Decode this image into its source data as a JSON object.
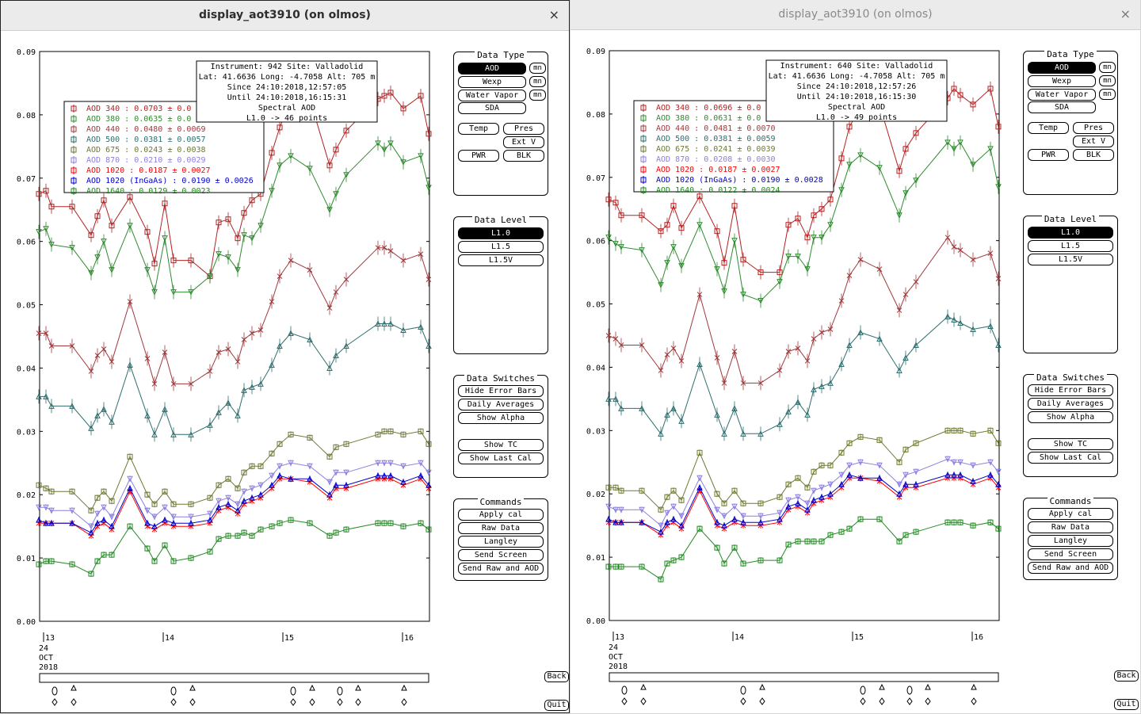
{
  "windows": [
    {
      "title": "display_aot3910 (on olmos)",
      "info": [
        "Instrument: 942 Site: Valladolid",
        "Lat: 41.6636 Long: -4.7058 Alt: 705 m",
        "Since 24:10:2018,12:57:05",
        "Until 24:10:2018,16:15:31",
        "Spectral AOD",
        "L1.0 -> 46 points"
      ],
      "legend": [
        "AOD 340   : 0.0703 ± 0.0",
        "AOD 380   : 0.0635 ± 0.0",
        "AOD 440   : 0.0480 ± 0.0069",
        "AOD 500   : 0.0381 ± 0.0057",
        "AOD 675   : 0.0243 ± 0.0038",
        "AOD 870   : 0.0210 ± 0.0029",
        "AOD 1020  : 0.0187 ± 0.0027",
        "AOD 1020 (InGaAs)   : 0.0190 ± 0.0026",
        "AOD 1640  : 0.0129 ± 0.0023"
      ]
    },
    {
      "title": "display_aot3910 (on olmos)",
      "info": [
        "Instrument: 640 Site: Valladolid",
        "Lat: 41.6636 Long: -4.7058 Alt: 705 m",
        "Since 24:10:2018,12:57:26",
        "Until 24:10:2018,16:15:30",
        "Spectral AOD",
        "L1.0 -> 49 points"
      ],
      "legend": [
        "AOD 340   : 0.0696 ± 0.0",
        "AOD 380   : 0.0631 ± 0.0",
        "AOD 440   : 0.0481 ± 0.0070",
        "AOD 500   : 0.0381 ± 0.0059",
        "AOD 675   : 0.0241 ± 0.0039",
        "AOD 870   : 0.0208 ± 0.0030",
        "AOD 1020  : 0.0187 ± 0.0027",
        "AOD 1020 (InGaAs)   : 0.0190 ± 0.0028",
        "AOD 1640  : 0.0122 ± 0.0024"
      ]
    }
  ],
  "close_icon": "×",
  "axis": {
    "yticks": [
      "0.00",
      "0.01",
      "0.02",
      "0.03",
      "0.04",
      "0.05",
      "0.06",
      "0.07",
      "0.08",
      "0.09"
    ],
    "xticks": [
      "13",
      "14",
      "15",
      "16"
    ],
    "date": [
      "24",
      "OCT",
      "2018"
    ]
  },
  "panels": {
    "data_type": {
      "title": "Data Type",
      "aod": "AOD",
      "wexp": "Wexp",
      "water_vapor": "Water Vapor",
      "sda": "SDA",
      "mn": "mn",
      "temp": "Temp",
      "pres": "Pres",
      "ext_v": "Ext V",
      "pwr": "PWR",
      "blk": "BLK"
    },
    "data_level": {
      "title": "Data Level",
      "l10": "L1.0",
      "l15": "L1.5",
      "l15v": "L1.5V"
    },
    "data_switches": {
      "title": "Data Switches",
      "hide_error_bars": "Hide Error Bars",
      "daily_averages": "Daily Averages",
      "show_alpha": "Show Alpha",
      "show_tc": "Show TC",
      "show_last_cal": "Show Last Cal"
    },
    "commands": {
      "title": "Commands",
      "apply_cal": "Apply cal",
      "raw_data": "Raw Data",
      "langley": "Langley",
      "send_screen": "Send Screen",
      "send_raw_and_aod": "Send Raw and AOD"
    }
  },
  "back": "Back",
  "quit": "Quit",
  "series_colors": [
    "#b22222",
    "#2e8b2e",
    "#a0383c",
    "#2f6e6e",
    "#6b7a30",
    "#8b7fe0",
    "#ff0000",
    "#0000cc",
    "#1e8a1e"
  ],
  "chart_data": [
    {
      "type": "line",
      "xlabel": "",
      "ylabel": "",
      "x_ticks": [
        "13",
        "14",
        "15",
        "16"
      ],
      "ylim": [
        0,
        0.09
      ],
      "series": [
        {
          "name": "AOD 340",
          "values": [
            0.0675,
            0.068,
            0.0655,
            0.0655,
            0.061,
            0.064,
            0.0665,
            0.0625,
            0.067,
            0.0615,
            0.0565,
            0.066,
            0.057,
            0.057,
            0.0545,
            0.063,
            0.0635,
            0.0605,
            0.0645,
            0.0665,
            0.0675,
            0.074,
            0.078,
            0.0825,
            0.0825,
            0.072,
            0.0745,
            0.0775,
            0.0825,
            0.083,
            0.0835,
            0.081,
            0.083,
            0.077
          ]
        },
        {
          "name": "AOD 380",
          "values": [
            0.0615,
            0.062,
            0.0595,
            0.059,
            0.055,
            0.0575,
            0.06,
            0.0555,
            0.0625,
            0.0555,
            0.052,
            0.0605,
            0.052,
            0.052,
            0.0545,
            0.058,
            0.0575,
            0.0555,
            0.061,
            0.0605,
            0.0625,
            0.068,
            0.072,
            0.0735,
            0.0715,
            0.065,
            0.0675,
            0.0705,
            0.0755,
            0.0745,
            0.0755,
            0.0725,
            0.0735,
            0.0685
          ]
        },
        {
          "name": "AOD 440",
          "values": [
            0.0455,
            0.0455,
            0.0435,
            0.0435,
            0.0395,
            0.042,
            0.043,
            0.041,
            0.0505,
            0.0415,
            0.0375,
            0.0425,
            0.0375,
            0.0375,
            0.0395,
            0.0425,
            0.043,
            0.041,
            0.0445,
            0.0455,
            0.046,
            0.0505,
            0.0545,
            0.057,
            0.0555,
            0.0495,
            0.052,
            0.054,
            0.059,
            0.059,
            0.0585,
            0.057,
            0.058,
            0.054
          ]
        },
        {
          "name": "AOD 500",
          "values": [
            0.0355,
            0.0355,
            0.034,
            0.034,
            0.0305,
            0.0325,
            0.0335,
            0.0315,
            0.0405,
            0.0325,
            0.0295,
            0.0335,
            0.0295,
            0.0295,
            0.031,
            0.033,
            0.0345,
            0.0325,
            0.0365,
            0.037,
            0.0375,
            0.0405,
            0.0435,
            0.0455,
            0.0445,
            0.04,
            0.042,
            0.0435,
            0.047,
            0.047,
            0.047,
            0.046,
            0.0465,
            0.0435
          ]
        },
        {
          "name": "AOD 675",
          "values": [
            0.0215,
            0.021,
            0.0205,
            0.0205,
            0.0175,
            0.0195,
            0.0205,
            0.019,
            0.026,
            0.02,
            0.0185,
            0.0205,
            0.0185,
            0.0185,
            0.0195,
            0.0215,
            0.0225,
            0.021,
            0.0235,
            0.0245,
            0.0245,
            0.0265,
            0.028,
            0.0295,
            0.029,
            0.026,
            0.0275,
            0.028,
            0.0295,
            0.03,
            0.03,
            0.0295,
            0.03,
            0.028
          ]
        },
        {
          "name": "AOD 870",
          "values": [
            0.018,
            0.018,
            0.0175,
            0.0175,
            0.015,
            0.017,
            0.018,
            0.0165,
            0.0225,
            0.0175,
            0.0165,
            0.018,
            0.0165,
            0.0165,
            0.017,
            0.019,
            0.0195,
            0.0185,
            0.0205,
            0.021,
            0.0215,
            0.023,
            0.0245,
            0.025,
            0.0245,
            0.022,
            0.0235,
            0.0235,
            0.025,
            0.025,
            0.025,
            0.0245,
            0.025,
            0.0235
          ]
        },
        {
          "name": "AOD 1020",
          "values": [
            0.0155,
            0.0155,
            0.0155,
            0.0155,
            0.0135,
            0.015,
            0.0155,
            0.0145,
            0.0205,
            0.015,
            0.0145,
            0.0155,
            0.015,
            0.015,
            0.0155,
            0.0175,
            0.018,
            0.017,
            0.0185,
            0.019,
            0.0195,
            0.021,
            0.0225,
            0.0225,
            0.022,
            0.0195,
            0.021,
            0.021,
            0.0225,
            0.0225,
            0.0225,
            0.0215,
            0.0225,
            0.021
          ]
        },
        {
          "name": "AOD 1020 (InGaAs)",
          "values": [
            0.016,
            0.0155,
            0.0155,
            0.0155,
            0.014,
            0.0155,
            0.016,
            0.015,
            0.021,
            0.0155,
            0.015,
            0.016,
            0.0155,
            0.0155,
            0.016,
            0.018,
            0.0185,
            0.0175,
            0.019,
            0.0195,
            0.02,
            0.0215,
            0.023,
            0.0225,
            0.0225,
            0.02,
            0.0215,
            0.0215,
            0.023,
            0.023,
            0.023,
            0.022,
            0.023,
            0.0215
          ]
        },
        {
          "name": "AOD 1640",
          "values": [
            0.009,
            0.0095,
            0.0095,
            0.009,
            0.0075,
            0.0095,
            0.0105,
            0.0105,
            0.015,
            0.0115,
            0.0095,
            0.012,
            0.0095,
            0.01,
            0.011,
            0.013,
            0.0135,
            0.0135,
            0.014,
            0.0135,
            0.0145,
            0.015,
            0.0155,
            0.016,
            0.0155,
            0.0135,
            0.014,
            0.0145,
            0.0155,
            0.0155,
            0.0155,
            0.015,
            0.0155,
            0.0145
          ]
        }
      ]
    },
    {
      "type": "line",
      "xlabel": "",
      "ylabel": "",
      "x_ticks": [
        "13",
        "14",
        "15",
        "16"
      ],
      "ylim": [
        0,
        0.09
      ],
      "series": [
        {
          "name": "AOD 340",
          "values": [
            0.0665,
            0.066,
            0.064,
            0.064,
            0.0615,
            0.0625,
            0.0655,
            0.062,
            0.067,
            0.0615,
            0.0565,
            0.0655,
            0.057,
            0.055,
            0.055,
            0.0625,
            0.0635,
            0.0605,
            0.064,
            0.065,
            0.0665,
            0.073,
            0.078,
            0.081,
            0.0815,
            0.071,
            0.0745,
            0.077,
            0.0825,
            0.084,
            0.083,
            0.0815,
            0.084,
            0.078
          ]
        },
        {
          "name": "AOD 380",
          "values": [
            0.0605,
            0.0595,
            0.059,
            0.0585,
            0.053,
            0.0565,
            0.059,
            0.056,
            0.0625,
            0.0555,
            0.052,
            0.06,
            0.0515,
            0.0505,
            0.0535,
            0.0575,
            0.0575,
            0.0555,
            0.0605,
            0.0605,
            0.0625,
            0.068,
            0.072,
            0.0735,
            0.0715,
            0.064,
            0.0675,
            0.0695,
            0.0755,
            0.0745,
            0.0755,
            0.072,
            0.0745,
            0.0685
          ]
        },
        {
          "name": "AOD 440",
          "values": [
            0.045,
            0.0445,
            0.0435,
            0.0435,
            0.0395,
            0.042,
            0.043,
            0.041,
            0.0515,
            0.0415,
            0.0375,
            0.0425,
            0.0375,
            0.0375,
            0.0395,
            0.0425,
            0.043,
            0.041,
            0.0445,
            0.0455,
            0.046,
            0.0505,
            0.0545,
            0.057,
            0.0555,
            0.049,
            0.0515,
            0.0535,
            0.0605,
            0.059,
            0.0585,
            0.057,
            0.058,
            0.054
          ]
        },
        {
          "name": "AOD 500",
          "values": [
            0.035,
            0.035,
            0.0335,
            0.0335,
            0.0295,
            0.0325,
            0.0335,
            0.0315,
            0.0405,
            0.0325,
            0.0295,
            0.0335,
            0.0295,
            0.0295,
            0.031,
            0.033,
            0.0345,
            0.0325,
            0.0365,
            0.037,
            0.0375,
            0.0405,
            0.0435,
            0.0455,
            0.0445,
            0.0395,
            0.0415,
            0.0435,
            0.048,
            0.0475,
            0.047,
            0.046,
            0.0465,
            0.0435
          ]
        },
        {
          "name": "AOD 675",
          "values": [
            0.021,
            0.021,
            0.0205,
            0.0205,
            0.0175,
            0.0195,
            0.0205,
            0.019,
            0.0265,
            0.02,
            0.0185,
            0.0205,
            0.0185,
            0.0185,
            0.0195,
            0.0215,
            0.0225,
            0.021,
            0.0235,
            0.0245,
            0.0245,
            0.0265,
            0.028,
            0.029,
            0.0285,
            0.025,
            0.027,
            0.028,
            0.03,
            0.03,
            0.03,
            0.0295,
            0.03,
            0.028
          ]
        },
        {
          "name": "AOD 870",
          "values": [
            0.018,
            0.0175,
            0.0175,
            0.0175,
            0.015,
            0.017,
            0.018,
            0.0165,
            0.0225,
            0.0175,
            0.0165,
            0.018,
            0.0165,
            0.0165,
            0.017,
            0.019,
            0.0195,
            0.0185,
            0.0205,
            0.021,
            0.0215,
            0.023,
            0.0245,
            0.025,
            0.0245,
            0.0215,
            0.023,
            0.0235,
            0.0255,
            0.025,
            0.025,
            0.0245,
            0.025,
            0.0235
          ]
        },
        {
          "name": "AOD 1020",
          "values": [
            0.0155,
            0.0155,
            0.0155,
            0.0155,
            0.0135,
            0.015,
            0.0155,
            0.0145,
            0.0205,
            0.015,
            0.0145,
            0.0155,
            0.015,
            0.015,
            0.0155,
            0.0175,
            0.018,
            0.017,
            0.0185,
            0.019,
            0.0195,
            0.021,
            0.0225,
            0.0225,
            0.022,
            0.0195,
            0.021,
            0.021,
            0.0225,
            0.0225,
            0.0225,
            0.0215,
            0.0225,
            0.021
          ]
        },
        {
          "name": "AOD 1020 (InGaAs)",
          "values": [
            0.016,
            0.0155,
            0.0155,
            0.0155,
            0.014,
            0.0155,
            0.016,
            0.015,
            0.021,
            0.0155,
            0.015,
            0.016,
            0.0155,
            0.0155,
            0.016,
            0.018,
            0.0185,
            0.0175,
            0.019,
            0.0195,
            0.02,
            0.0215,
            0.023,
            0.0225,
            0.0225,
            0.02,
            0.0215,
            0.0215,
            0.023,
            0.023,
            0.023,
            0.022,
            0.023,
            0.0215
          ]
        },
        {
          "name": "AOD 1640",
          "values": [
            0.0085,
            0.0085,
            0.0085,
            0.0085,
            0.0065,
            0.009,
            0.0095,
            0.01,
            0.0145,
            0.0115,
            0.009,
            0.0115,
            0.009,
            0.0095,
            0.0095,
            0.012,
            0.0125,
            0.0125,
            0.0125,
            0.0125,
            0.0135,
            0.014,
            0.0145,
            0.016,
            0.016,
            0.0125,
            0.0135,
            0.014,
            0.0155,
            0.0155,
            0.0155,
            0.015,
            0.0155,
            0.0145
          ]
        }
      ]
    }
  ]
}
